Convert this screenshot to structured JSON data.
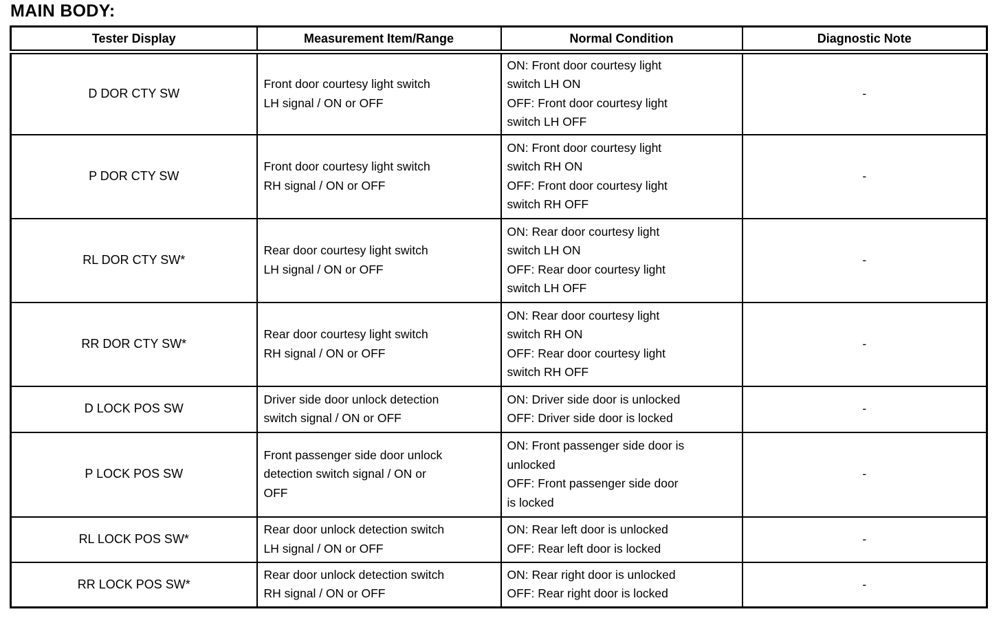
{
  "page": {
    "title": "MAIN BODY:",
    "background_color": "#ffffff",
    "text_color": "#000000",
    "border_color": "#000000"
  },
  "table": {
    "headers": [
      "Tester Display",
      "Measurement Item/Range",
      "Normal Condition",
      "Diagnostic Note"
    ],
    "rows": [
      {
        "tester": "D DOR CTY SW",
        "measurement": "Front door courtesy light switch\nLH signal / ON or OFF",
        "normal": "ON: Front door courtesy light\nswitch LH ON\nOFF: Front door courtesy light\nswitch LH OFF",
        "note": "-"
      },
      {
        "tester": "P DOR CTY SW",
        "measurement": "Front door courtesy light switch\nRH signal / ON or OFF",
        "normal": "ON: Front door courtesy light\nswitch RH ON\nOFF: Front door courtesy light\nswitch RH OFF",
        "note": "-"
      },
      {
        "tester": "RL DOR CTY SW*",
        "measurement": "Rear door courtesy light switch\nLH signal / ON or OFF",
        "normal": "ON: Rear door courtesy light\nswitch LH ON\nOFF: Rear door courtesy light\nswitch LH OFF",
        "note": "-"
      },
      {
        "tester": "RR DOR CTY SW*",
        "measurement": "Rear door courtesy light switch\nRH signal / ON or OFF",
        "normal": "ON: Rear door courtesy light\nswitch RH ON\nOFF: Rear door courtesy light\nswitch RH OFF",
        "note": "-"
      },
      {
        "tester": "D LOCK POS SW",
        "measurement": "Driver side door unlock detection\nswitch signal / ON or OFF",
        "normal": "ON: Driver side door is unlocked\nOFF: Driver side door is locked",
        "note": "-"
      },
      {
        "tester": "P LOCK POS SW",
        "measurement": "Front passenger side door unlock\ndetection switch signal / ON or\nOFF",
        "normal": "ON: Front passenger side door is\nunlocked\nOFF: Front passenger side door\nis locked",
        "note": "-"
      },
      {
        "tester": "RL LOCK POS SW*",
        "measurement": "Rear door unlock detection switch\nLH signal / ON or OFF",
        "normal": "ON: Rear left door is unlocked\nOFF: Rear left door is locked",
        "note": "-"
      },
      {
        "tester": "RR LOCK POS SW*",
        "measurement": "Rear door unlock detection switch\nRH signal / ON or OFF",
        "normal": "ON: Rear right door is unlocked\nOFF: Rear right door is locked",
        "note": "-"
      }
    ]
  }
}
